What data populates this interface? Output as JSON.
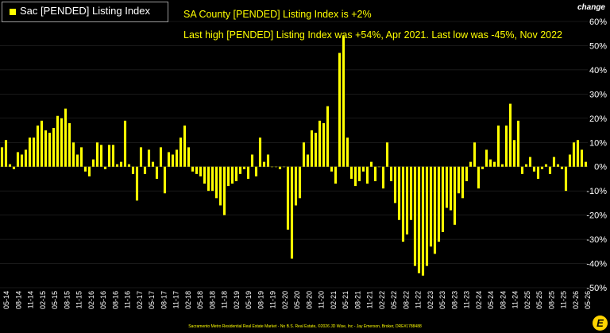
{
  "legend": {
    "label": "Sac [PENDED] Listing Index",
    "color": "#ffff00"
  },
  "annotation_line1": "SA County [PENDED] Listing Index is +2%",
  "annotation_line2": "Last high [PENDED] Listing Index was +54%, Apr 2021. Last low was -45%, Nov 2022",
  "corner_label": "change",
  "footer": "Sacramento Metro Residential Real Estate Market - No B.S. Real Estate, ©2026 JD Wise, Inc - Jay Emerson, Broker, DRE#1788488",
  "logo_text": "E",
  "colors": {
    "bar": "#ffff00",
    "background": "#000000",
    "axis_text": "#ffffff",
    "grid": "#333333"
  },
  "chart_data": {
    "type": "bar",
    "series": [
      {
        "name": "Sac [PENDED] Listing Index",
        "color": "#ffff00",
        "values": [
          8,
          11,
          1,
          -1,
          6,
          5,
          7,
          12,
          12,
          17,
          19,
          15,
          14,
          16,
          21,
          20,
          24,
          18,
          10,
          5,
          8,
          -2,
          -4,
          3,
          10,
          9,
          -1,
          9,
          9,
          1,
          2,
          19,
          1,
          -3,
          -14,
          8,
          -3,
          7,
          2,
          -5,
          8,
          -11,
          6,
          5,
          7,
          12,
          17,
          8,
          -2,
          -3,
          -4,
          -7,
          -10,
          -10,
          -13,
          -16,
          -20,
          -8,
          -7,
          -6,
          -3,
          -1,
          -5,
          5,
          -4,
          12,
          2,
          5,
          0,
          0,
          -1,
          0,
          -26,
          -38,
          -16,
          -13,
          10,
          5,
          15,
          14,
          19,
          18,
          25,
          -2,
          -7,
          47,
          54,
          12,
          -5,
          -8,
          -6,
          -2,
          -7,
          2,
          -6,
          0,
          -9,
          10,
          -6,
          -15,
          -22,
          -31,
          -28,
          -22,
          -41,
          -44,
          -45,
          -41,
          -33,
          -36,
          -31,
          -27,
          -17,
          -18,
          -24,
          -11,
          -13,
          -6,
          2,
          10,
          -9,
          -1,
          7,
          3,
          2,
          17,
          1,
          17,
          26,
          11,
          19,
          -3,
          1,
          4,
          -2,
          -5,
          -1,
          1,
          -3,
          4,
          1,
          -1,
          -10,
          5,
          10,
          11,
          7,
          2
        ]
      }
    ],
    "x_tick_labels": [
      "05-14",
      "08-14",
      "11-14",
      "02-15",
      "05-15",
      "08-15",
      "11-15",
      "02-16",
      "05-16",
      "08-16",
      "11-16",
      "02-17",
      "05-17",
      "08-17",
      "11-17",
      "02-18",
      "05-18",
      "08-18",
      "11-18",
      "02-19",
      "05-19",
      "08-19",
      "11-19",
      "02-20",
      "05-20",
      "08-20",
      "11-20",
      "02-21",
      "05-21",
      "08-21",
      "11-21",
      "02-22",
      "05-22",
      "08-22",
      "11-22",
      "02-23",
      "05-23",
      "08-23",
      "11-23",
      "02-24",
      "05-24",
      "08-24",
      "11-24",
      "02-25",
      "05-25",
      "08-25",
      "11-25",
      "02-26",
      "05-26"
    ],
    "y_ticks": [
      "60%",
      "50%",
      "40%",
      "30%",
      "20%",
      "10%",
      "0%",
      "-10%",
      "-20%",
      "-30%",
      "-40%",
      "-50%"
    ],
    "ylim": [
      -50,
      60
    ],
    "grid": false,
    "legend_position": "top-left",
    "y_axis_side": "right"
  }
}
